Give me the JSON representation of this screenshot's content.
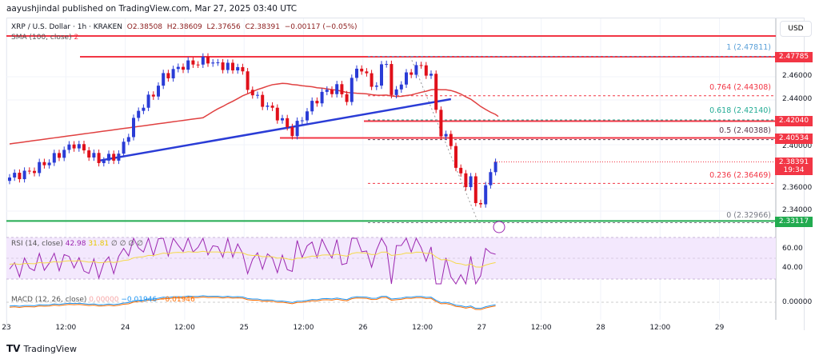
{
  "header": {
    "published": "aayushjindal published on TradingView.com, Mar 27, 2025 03:40 UTC"
  },
  "legend": {
    "symbol": "XRP / U.S. Dollar · 1h · KRAKEN",
    "open": "O2.38508",
    "high": "H2.38609",
    "low": "L2.37656",
    "close": "C2.38391",
    "change": "−0.00117 (−0.05%)"
  },
  "sma": {
    "label": "SMA (100, close)",
    "value": "2"
  },
  "price_scale": {
    "currency": "USD",
    "ticks": [
      "2.46000",
      "2.44000",
      "2.40000",
      "2.36000",
      "2.34000"
    ]
  },
  "price_tags": {
    "resistance1": "2.47785",
    "resistance2": "2.42040",
    "resistance3": "2.40534",
    "last": "2.38391",
    "countdown": "19:34",
    "support": "2.33117"
  },
  "fib": [
    {
      "label": "1 (2.47811)",
      "color": "#5aa0d8"
    },
    {
      "label": "0.764 (2.44308)",
      "color": "#f23645"
    },
    {
      "label": "0.618 (2.42140)",
      "color": "#22ab94"
    },
    {
      "label": "0.5 (2.40388)",
      "color": "#5d3a4f"
    },
    {
      "label": "0.236 (2.36469)",
      "color": "#f23645"
    },
    {
      "label": "0 (2.32966)",
      "color": "#787b86"
    }
  ],
  "rsi": {
    "label": "RSI (14, close)",
    "value": "42.98",
    "ma": "31.81",
    "extra": "∅ ∅ ∅ ∅",
    "ticks": [
      "60.00",
      "40.00"
    ]
  },
  "macd": {
    "label": "MACD (12, 26, close)",
    "hist": "0.00000",
    "macd": "−0.01946",
    "signal": "−0.01946",
    "tick": "0.00000"
  },
  "time_axis": [
    "23",
    "12:00",
    "24",
    "12:00",
    "25",
    "12:00",
    "26",
    "12:00",
    "27",
    "12:00",
    "28",
    "12:00",
    "29"
  ],
  "footer": {
    "brand": "TradingView"
  },
  "chart_data": {
    "type": "candlestick",
    "interval": "1h",
    "price_range": [
      2.32,
      2.49
    ],
    "path": [
      [
        0,
        2.37
      ],
      [
        4,
        2.375
      ],
      [
        8,
        2.385
      ],
      [
        13,
        2.4
      ],
      [
        18,
        2.385
      ],
      [
        22,
        2.39
      ],
      [
        24,
        2.41
      ],
      [
        26,
        2.43
      ],
      [
        29,
        2.445
      ],
      [
        31,
        2.46
      ],
      [
        35,
        2.47
      ],
      [
        40,
        2.475
      ],
      [
        44,
        2.47
      ],
      [
        45,
        2.465
      ],
      [
        42,
        2.47
      ],
      [
        46,
        2.472
      ],
      [
        48,
        2.45
      ],
      [
        50,
        2.44
      ],
      [
        53,
        2.43
      ],
      [
        55,
        2.42
      ],
      [
        57,
        2.41
      ],
      [
        60,
        2.43
      ],
      [
        63,
        2.445
      ],
      [
        66,
        2.45
      ],
      [
        68,
        2.44
      ],
      [
        70,
        2.47
      ],
      [
        72,
        2.46
      ],
      [
        74,
        2.45
      ],
      [
        76,
        2.475
      ],
      [
        75,
        2.47
      ],
      [
        77,
        2.44
      ],
      [
        78,
        2.45
      ],
      [
        80,
        2.46
      ],
      [
        82,
        2.47
      ],
      [
        84,
        2.465
      ],
      [
        85,
        2.46
      ],
      [
        86,
        2.43
      ],
      [
        87,
        2.41
      ],
      [
        88,
        2.405
      ],
      [
        89,
        2.4
      ],
      [
        90,
        2.38
      ],
      [
        91,
        2.37
      ],
      [
        92,
        2.365
      ],
      [
        93,
        2.37
      ],
      [
        94,
        2.345
      ],
      [
        95,
        2.35
      ],
      [
        96,
        2.36
      ],
      [
        97,
        2.375
      ],
      [
        98,
        2.384
      ]
    ],
    "resistance_levels": [
      2.4865,
      2.47785,
      2.4204,
      2.40534
    ],
    "support_levels": [
      2.33117
    ],
    "trendline": [
      [
        18,
        2.385
      ],
      [
        89,
        2.44
      ]
    ]
  }
}
